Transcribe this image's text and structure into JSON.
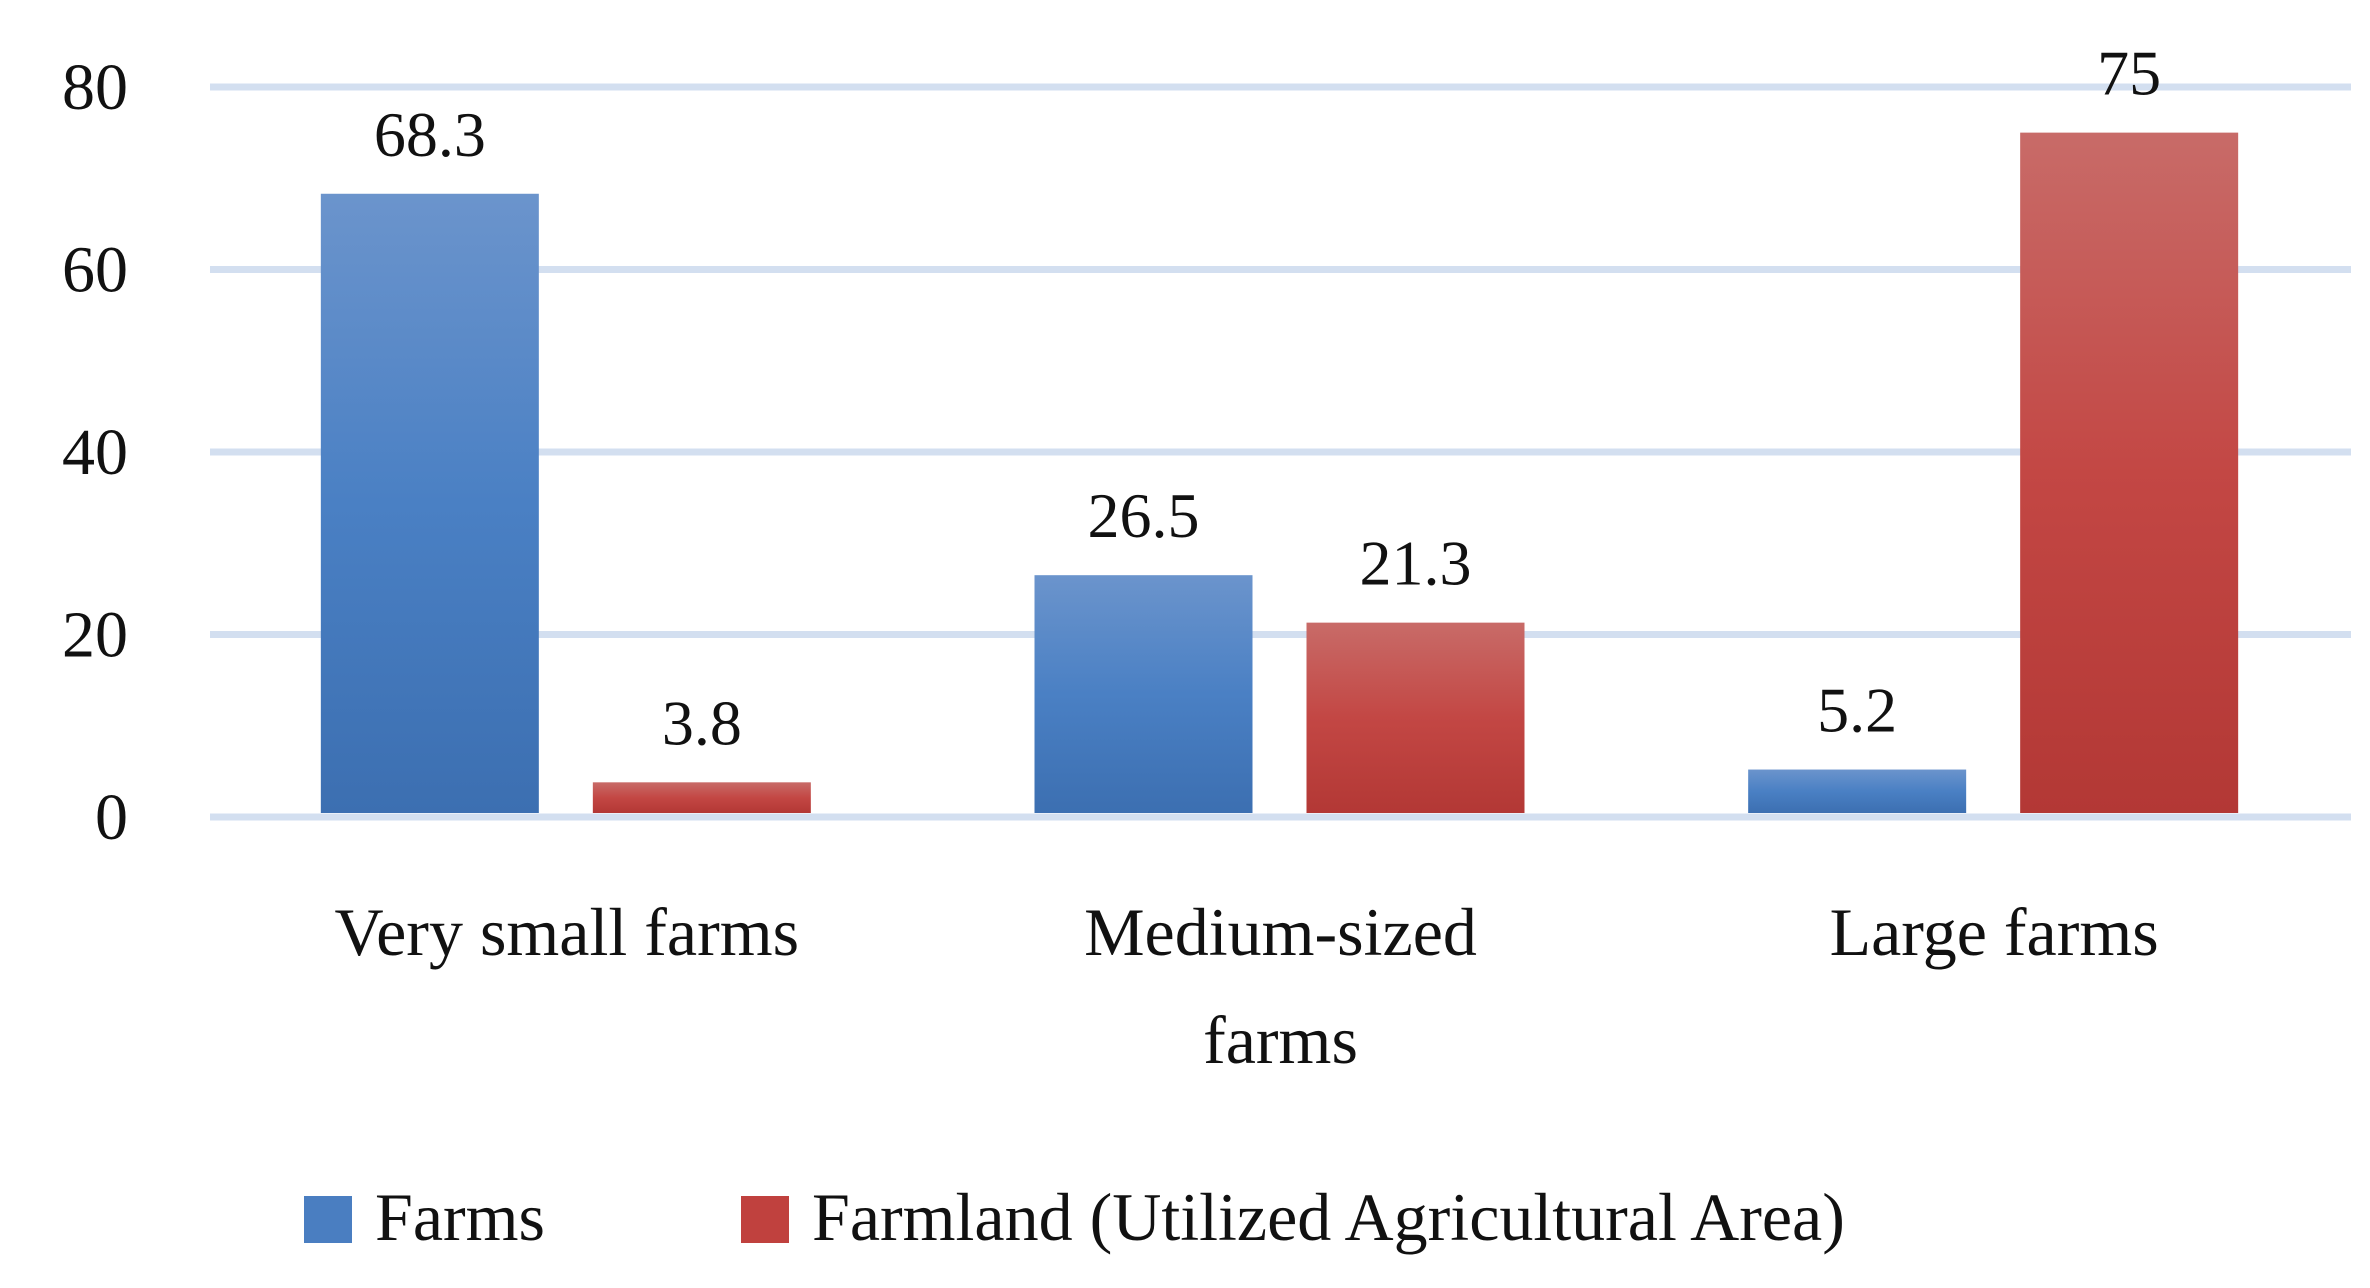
{
  "chart_data": {
    "type": "bar",
    "title": "",
    "xlabel": "",
    "ylabel": "",
    "ylim": [
      0,
      80
    ],
    "yticks": [
      "0",
      "20",
      "40",
      "60",
      "80"
    ],
    "grid": true,
    "legend_position": "bottom",
    "categories": [
      [
        "Very small farms"
      ],
      [
        "Medium-sized",
        "farms"
      ],
      [
        "Large farms"
      ]
    ],
    "series": [
      {
        "name": "Farms",
        "values": [
          68.3,
          26.5,
          5.2
        ],
        "labels": [
          "68.3",
          "26.5",
          "5.2"
        ],
        "color": "#4a7ec1"
      },
      {
        "name": "Farmland (Utilized Agricultural Area)",
        "values": [
          3.8,
          21.3,
          75
        ],
        "labels": [
          "3.8",
          "21.3",
          "75"
        ],
        "color": "#c0413e"
      }
    ]
  }
}
